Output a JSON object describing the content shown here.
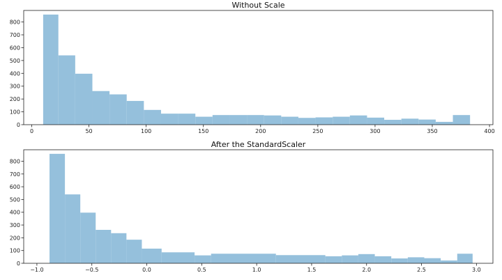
{
  "colors": {
    "bar": "#95c0dc",
    "background": "#ffffff",
    "axis": "#222222"
  },
  "chart_data": [
    {
      "type": "bar",
      "title": "Without Scale",
      "xlabel": "",
      "ylabel": "",
      "bins": [
        [
          10,
          23.3,
          858
        ],
        [
          23.3,
          38,
          540
        ],
        [
          38,
          53,
          397
        ],
        [
          53,
          68,
          262
        ],
        [
          68,
          83,
          236
        ],
        [
          83,
          98,
          185
        ],
        [
          98,
          113,
          115
        ],
        [
          113,
          128,
          86
        ],
        [
          128,
          143,
          86
        ],
        [
          143,
          158,
          62
        ],
        [
          158,
          173,
          75
        ],
        [
          173,
          188,
          75
        ],
        [
          188,
          203,
          75
        ],
        [
          203,
          218,
          72
        ],
        [
          218,
          233,
          62
        ],
        [
          233,
          248,
          53
        ],
        [
          248,
          263,
          57
        ],
        [
          263,
          278,
          62
        ],
        [
          278,
          293,
          72
        ],
        [
          293,
          308,
          55
        ],
        [
          308,
          323,
          38
        ],
        [
          323,
          338,
          47
        ],
        [
          338,
          353,
          40
        ],
        [
          353,
          368,
          22
        ],
        [
          368,
          383,
          75
        ]
      ],
      "xlim": [
        -7,
        403
      ],
      "ylim": [
        0,
        890
      ],
      "xticks": [
        0,
        50,
        100,
        150,
        200,
        250,
        300,
        350,
        400
      ],
      "xtick_labels": [
        "0",
        "50",
        "100",
        "150",
        "200",
        "250",
        "300",
        "350",
        "400"
      ],
      "yticks": [
        0,
        100,
        200,
        300,
        400,
        500,
        600,
        700,
        800
      ],
      "ytick_labels": [
        "0",
        "100",
        "200",
        "300",
        "400",
        "500",
        "600",
        "700",
        "800"
      ]
    },
    {
      "type": "bar",
      "title": "After the StandardScaler",
      "xlabel": "",
      "ylabel": "",
      "bins": [
        [
          -0.885,
          -0.745,
          858
        ],
        [
          -0.745,
          -0.605,
          540
        ],
        [
          -0.605,
          -0.465,
          397
        ],
        [
          -0.465,
          -0.325,
          262
        ],
        [
          -0.325,
          -0.185,
          236
        ],
        [
          -0.185,
          -0.045,
          185
        ],
        [
          -0.045,
          0.135,
          115
        ],
        [
          0.135,
          0.435,
          86
        ],
        [
          0.435,
          0.585,
          62
        ],
        [
          0.585,
          1.175,
          75
        ],
        [
          1.175,
          1.625,
          64
        ],
        [
          1.625,
          1.775,
          55
        ],
        [
          1.775,
          1.925,
          62
        ],
        [
          1.925,
          2.075,
          72
        ],
        [
          2.075,
          2.225,
          55
        ],
        [
          2.225,
          2.375,
          38
        ],
        [
          2.375,
          2.525,
          47
        ],
        [
          2.525,
          2.675,
          40
        ],
        [
          2.675,
          2.825,
          22
        ],
        [
          2.825,
          2.965,
          75
        ]
      ],
      "xlim": [
        -1.12,
        3.15
      ],
      "ylim": [
        0,
        890
      ],
      "xticks": [
        -1.0,
        -0.5,
        0.0,
        0.5,
        1.0,
        1.5,
        2.0,
        2.5,
        3.0
      ],
      "xtick_labels": [
        "−1.0",
        "−0.5",
        "0.0",
        "0.5",
        "1.0",
        "1.5",
        "2.0",
        "2.5",
        "3.0"
      ],
      "yticks": [
        0,
        100,
        200,
        300,
        400,
        500,
        600,
        700,
        800
      ],
      "ytick_labels": [
        "0",
        "100",
        "200",
        "300",
        "400",
        "500",
        "600",
        "700",
        "800"
      ]
    }
  ]
}
